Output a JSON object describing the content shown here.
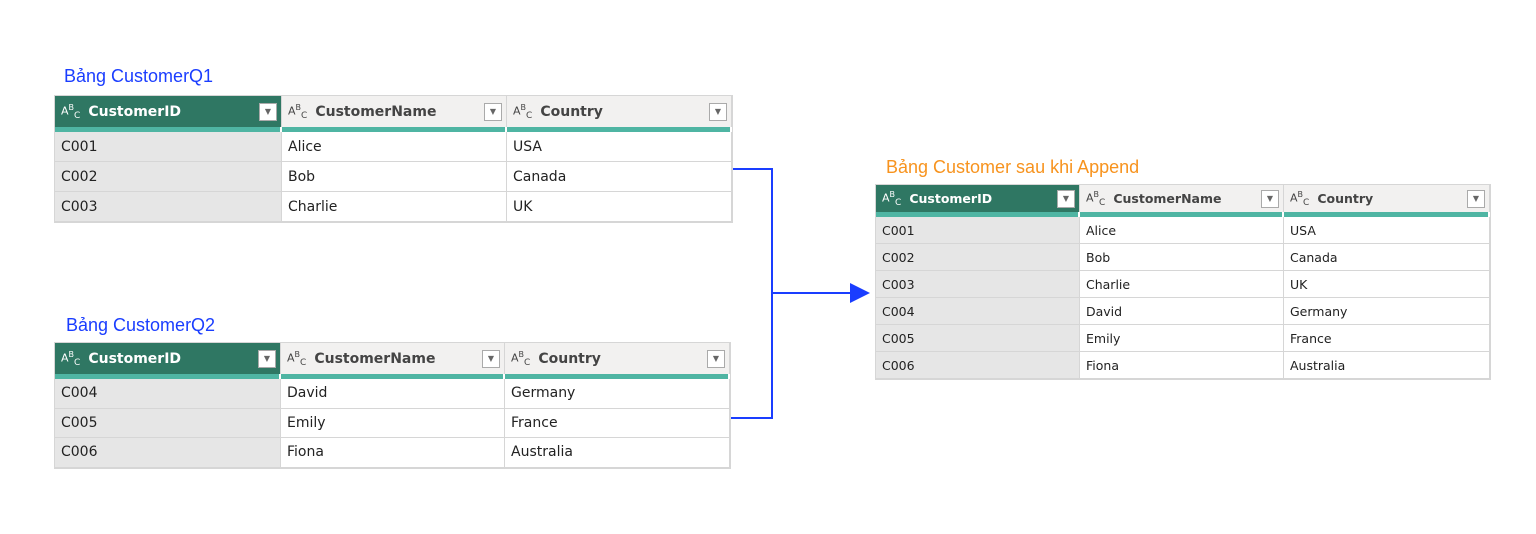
{
  "q1": {
    "title": "Bảng CustomerQ1",
    "title_color": "#1a3dff",
    "columns": [
      "CustomerID",
      "CustomerName",
      "Country"
    ],
    "rows": [
      [
        "C001",
        "Alice",
        "USA"
      ],
      [
        "C002",
        "Bob",
        "Canada"
      ],
      [
        "C003",
        "Charlie",
        "UK"
      ]
    ]
  },
  "q2": {
    "title": "Bảng CustomerQ2",
    "title_color": "#1a3dff",
    "columns": [
      "CustomerID",
      "CustomerName",
      "Country"
    ],
    "rows": [
      [
        "C004",
        "David",
        "Germany"
      ],
      [
        "C005",
        "Emily",
        "France"
      ],
      [
        "C006",
        "Fiona",
        "Australia"
      ]
    ]
  },
  "result": {
    "title": "Bảng Customer sau khi Append",
    "title_color": "#f7931e",
    "columns": [
      "CustomerID",
      "CustomerName",
      "Country"
    ],
    "rows": [
      [
        "C001",
        "Alice",
        "USA"
      ],
      [
        "C002",
        "Bob",
        "Canada"
      ],
      [
        "C003",
        "Charlie",
        "UK"
      ],
      [
        "C004",
        "David",
        "Germany"
      ],
      [
        "C005",
        "Emily",
        "France"
      ],
      [
        "C006",
        "Fiona",
        "Australia"
      ]
    ]
  },
  "type_icon": "abc-text-type-icon",
  "connector_color": "#1a3dff"
}
